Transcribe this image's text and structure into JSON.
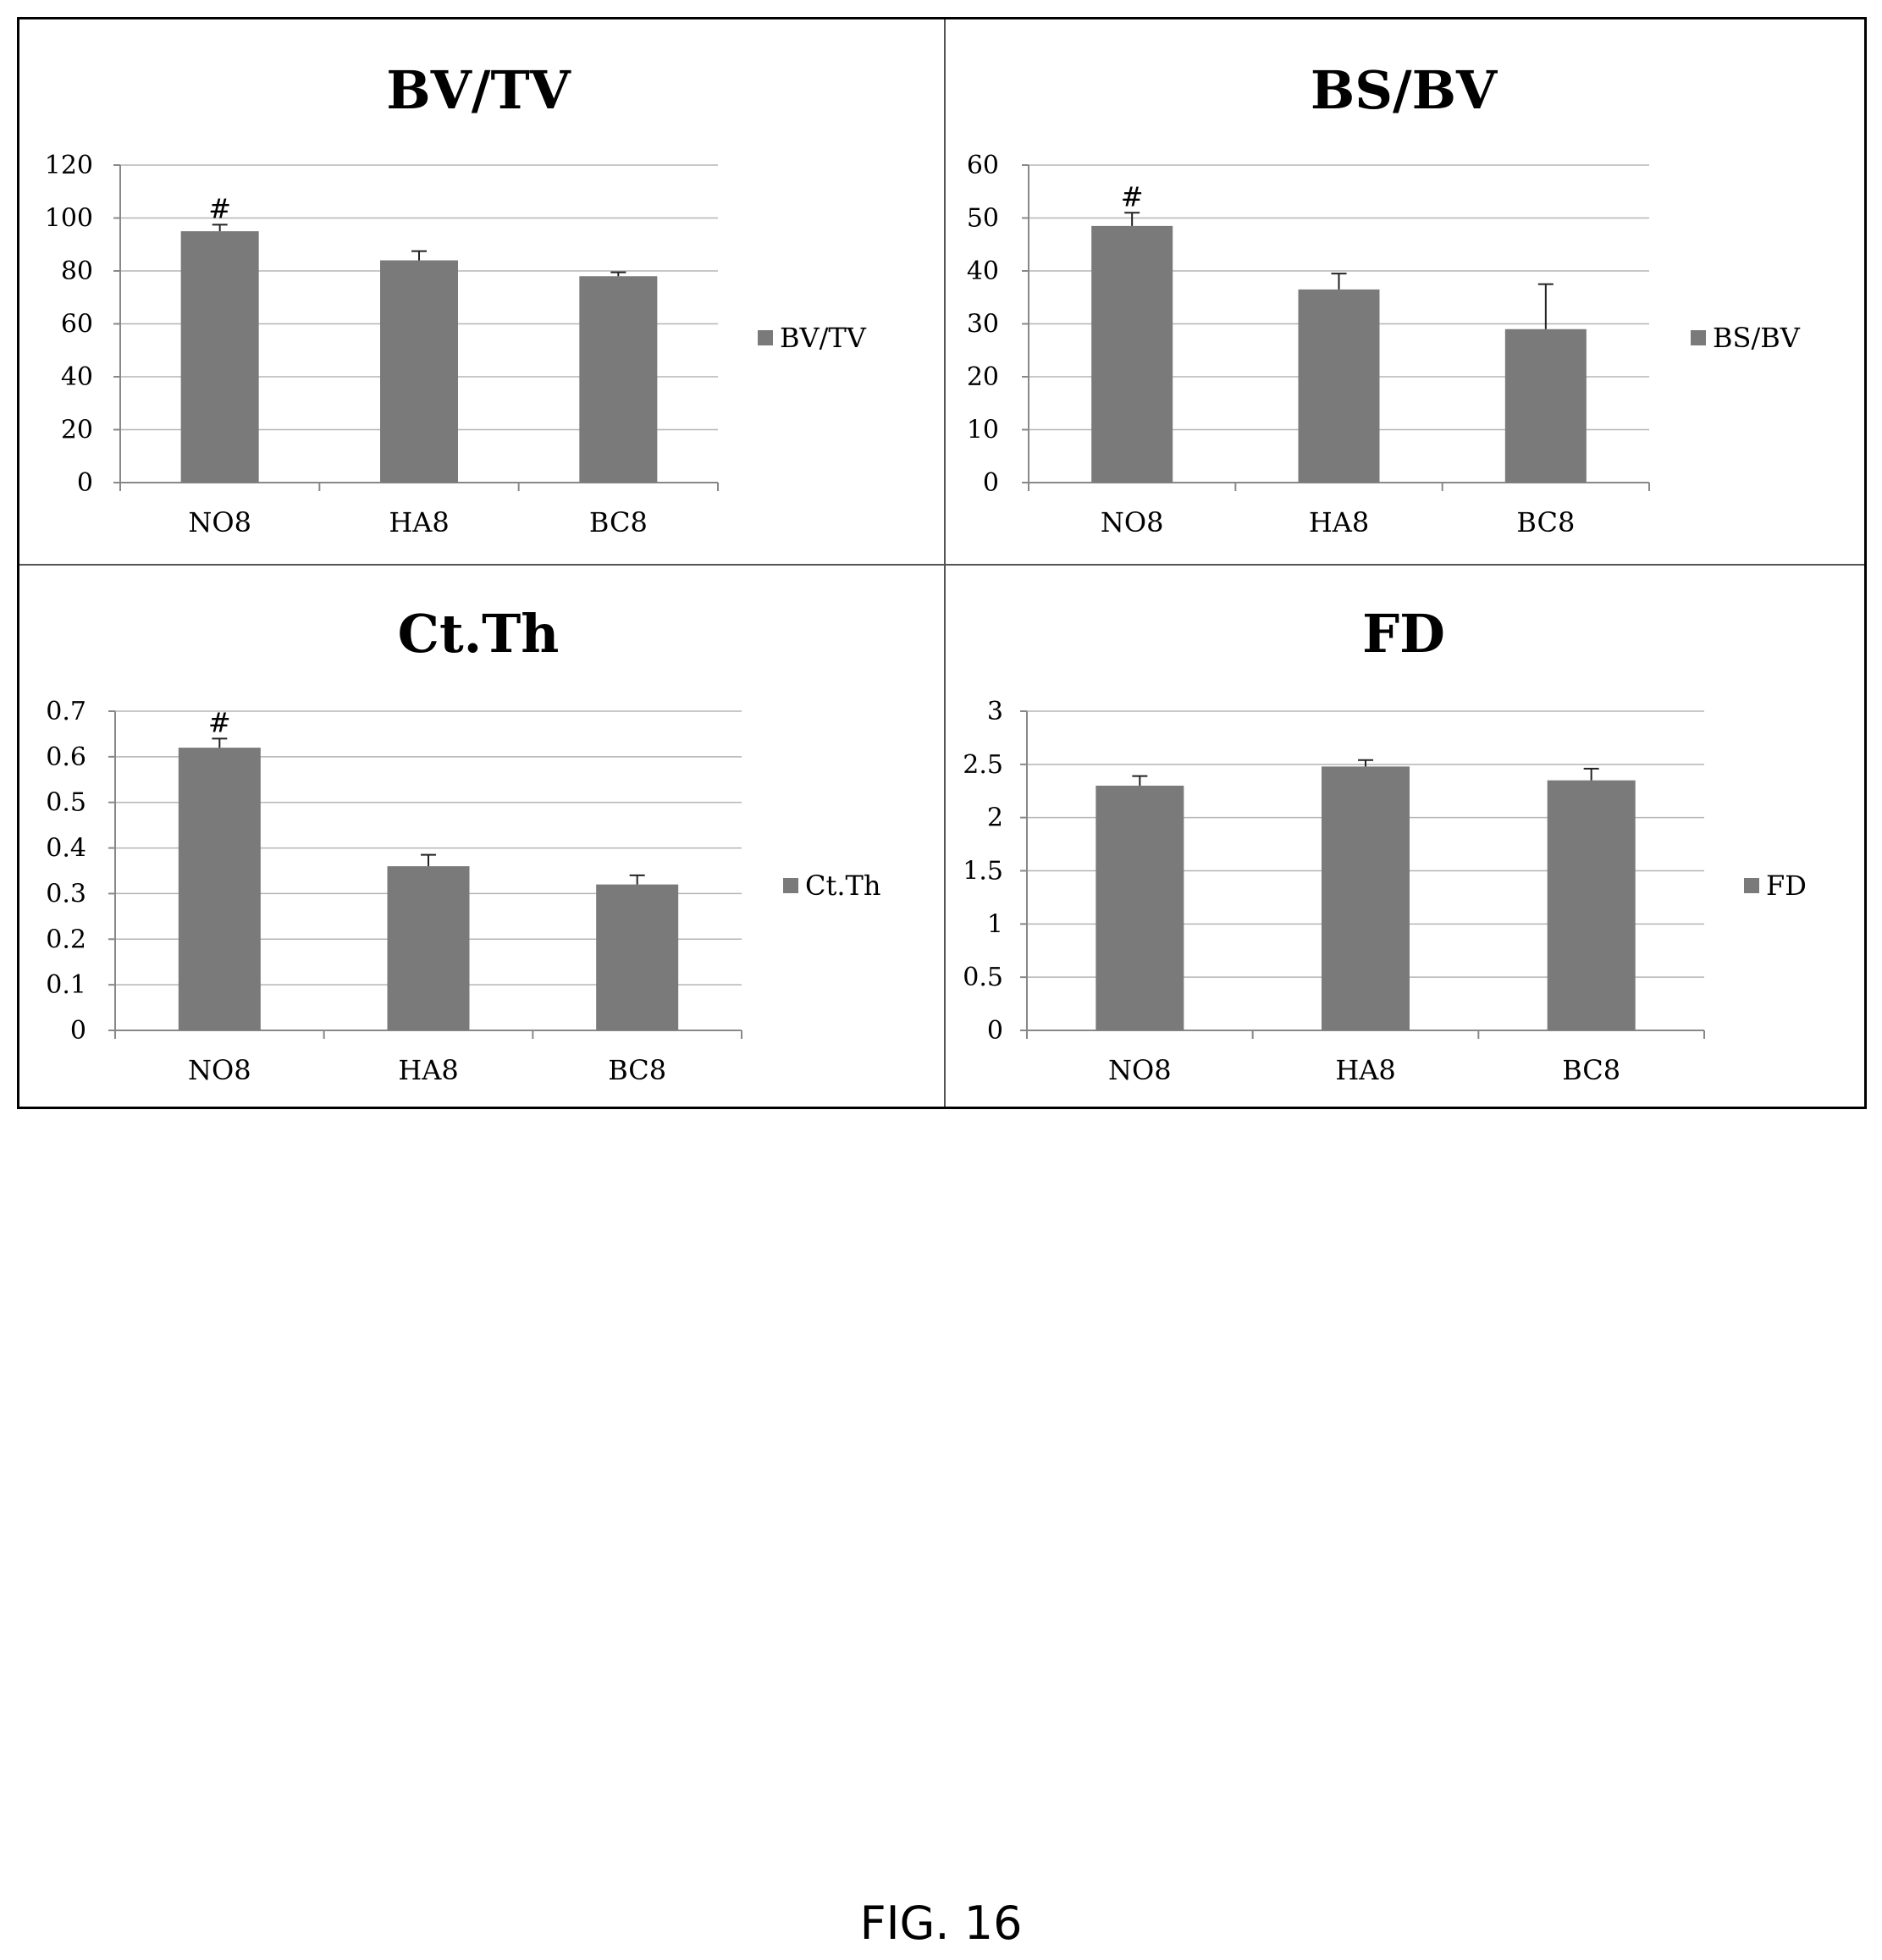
{
  "caption": "FIG. 16",
  "colors": {
    "bar": "#7a7a7a",
    "grid": "#b5b5b5",
    "axis": "#888888",
    "error": "#222222"
  },
  "chart_data": [
    {
      "type": "bar",
      "title": "BV/TV",
      "categories": [
        "NO8",
        "HA8",
        "BC8"
      ],
      "series": [
        {
          "name": "BV/TV",
          "values": [
            95,
            84,
            78
          ],
          "errors": [
            2.5,
            3.5,
            1.5
          ]
        }
      ],
      "markers": [
        "#",
        "",
        ""
      ],
      "ylim": [
        0,
        120
      ],
      "yticks": [
        0,
        20,
        40,
        60,
        80,
        100,
        120
      ],
      "ytick_labels": [
        "0",
        "20",
        "40",
        "60",
        "80",
        "100",
        "120"
      ],
      "xlabel": "",
      "ylabel": "",
      "grid": true,
      "legend": "right"
    },
    {
      "type": "bar",
      "title": "BS/BV",
      "categories": [
        "NO8",
        "HA8",
        "BC8"
      ],
      "series": [
        {
          "name": "BS/BV",
          "values": [
            48.5,
            36.5,
            29
          ],
          "errors": [
            2.5,
            3,
            8.5
          ]
        }
      ],
      "markers": [
        "#",
        "",
        ""
      ],
      "ylim": [
        0,
        60
      ],
      "yticks": [
        0,
        10,
        20,
        30,
        40,
        50,
        60
      ],
      "ytick_labels": [
        "0",
        "10",
        "20",
        "30",
        "40",
        "50",
        "60"
      ],
      "xlabel": "",
      "ylabel": "",
      "grid": true,
      "legend": "right"
    },
    {
      "type": "bar",
      "title": "Ct.Th",
      "categories": [
        "NO8",
        "HA8",
        "BC8"
      ],
      "series": [
        {
          "name": "Ct.Th",
          "values": [
            0.62,
            0.36,
            0.32
          ],
          "errors": [
            0.02,
            0.025,
            0.02
          ]
        }
      ],
      "markers": [
        "#",
        "",
        ""
      ],
      "ylim": [
        0,
        0.7
      ],
      "yticks": [
        0,
        0.1,
        0.2,
        0.3,
        0.4,
        0.5,
        0.6,
        0.7
      ],
      "ytick_labels": [
        "0",
        "0.1",
        "0.2",
        "0.3",
        "0.4",
        "0.5",
        "0.6",
        "0.7"
      ],
      "xlabel": "",
      "ylabel": "",
      "grid": true,
      "legend": "right"
    },
    {
      "type": "bar",
      "title": "FD",
      "categories": [
        "NO8",
        "HA8",
        "BC8"
      ],
      "series": [
        {
          "name": "FD",
          "values": [
            2.3,
            2.48,
            2.35
          ],
          "errors": [
            0.09,
            0.06,
            0.11
          ]
        }
      ],
      "markers": [
        "",
        "",
        ""
      ],
      "ylim": [
        0,
        3
      ],
      "yticks": [
        0,
        0.5,
        1,
        1.5,
        2,
        2.5,
        3
      ],
      "ytick_labels": [
        "0",
        "0.5",
        "1",
        "1.5",
        "2",
        "2.5",
        "3"
      ],
      "xlabel": "",
      "ylabel": "",
      "grid": true,
      "legend": "right"
    }
  ]
}
